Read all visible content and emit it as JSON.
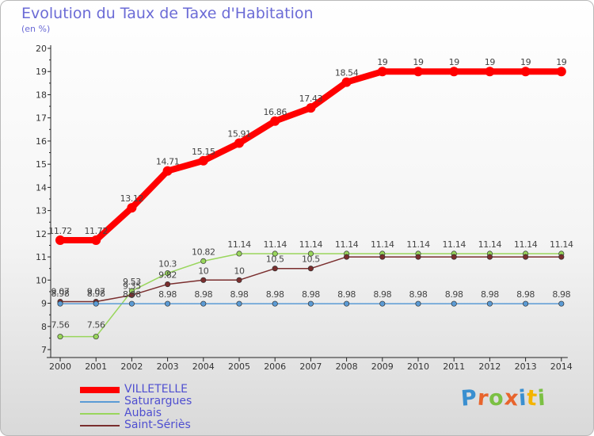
{
  "title": "Evolution du Taux de Taxe d'Habitation",
  "subtitle": "(en %)",
  "logo": {
    "text": "Proxiti",
    "letter_colors": [
      "#3a8fd0",
      "#e8642c",
      "#7bc043",
      "#e8642c",
      "#3a8fd0",
      "#f4b400",
      "#7bc043"
    ]
  },
  "chart_data": {
    "type": "line",
    "x": [
      "2000",
      "2001",
      "2002",
      "2003",
      "2004",
      "2005",
      "2006",
      "2007",
      "2008",
      "2009",
      "2010",
      "2011",
      "2012",
      "2013",
      "2014"
    ],
    "ylim": [
      7,
      20
    ],
    "yticks": [
      "7",
      "8",
      "9",
      "10",
      "11",
      "12",
      "13",
      "14",
      "15",
      "16",
      "17",
      "18",
      "19",
      "20"
    ],
    "grid": false,
    "legend_position": "bottom-left",
    "series": [
      {
        "name": "VILLETELLE",
        "color": "#ff0000",
        "values": [
          11.72,
          11.72,
          13.12,
          14.71,
          15.15,
          15.91,
          16.86,
          17.43,
          18.54,
          19,
          19,
          19,
          19,
          19,
          19
        ],
        "labels": [
          "11.72",
          "11.72",
          "13.12",
          "14.71",
          "15.15",
          "15.91",
          "16.86",
          "17.43",
          "18.54",
          "19",
          "19",
          "19",
          "19",
          "19",
          "19"
        ]
      },
      {
        "name": "Saturargues",
        "color": "#5b9bd5",
        "values": [
          8.98,
          8.98,
          8.98,
          8.98,
          8.98,
          8.98,
          8.98,
          8.98,
          8.98,
          8.98,
          8.98,
          8.98,
          8.98,
          8.98,
          8.98
        ],
        "labels": [
          "8.98",
          "8.98",
          "8.98",
          "8.98",
          "8.98",
          "8.98",
          "8.98",
          "8.98",
          "8.98",
          "8.98",
          "8.98",
          "8.98",
          "8.98",
          "8.98",
          "8.98"
        ]
      },
      {
        "name": "Aubais",
        "color": "#99d65c",
        "values": [
          7.56,
          7.56,
          9.53,
          10.3,
          10.82,
          11.14,
          11.14,
          11.14,
          11.14,
          11.14,
          11.14,
          11.14,
          11.14,
          11.14,
          11.14
        ],
        "labels": [
          "7.56",
          "7.56",
          "9.53",
          "10.3",
          "10.82",
          "11.14",
          "11.14",
          "11.14",
          "11.14",
          "11.14",
          "11.14",
          "11.14",
          "11.14",
          "11.14",
          "11.14"
        ]
      },
      {
        "name": "Saint-Sériès",
        "color": "#7a2e2e",
        "values": [
          9.07,
          9.07,
          9.35,
          9.82,
          10,
          10,
          10.5,
          10.5,
          11,
          11,
          11,
          11,
          11,
          11,
          11
        ],
        "labels": [
          "9.07",
          "9.07",
          "9.35",
          "9.82",
          "10",
          "10",
          "10.5",
          "10.5",
          "",
          "",
          "",
          "",
          "",
          "",
          ""
        ]
      }
    ]
  }
}
